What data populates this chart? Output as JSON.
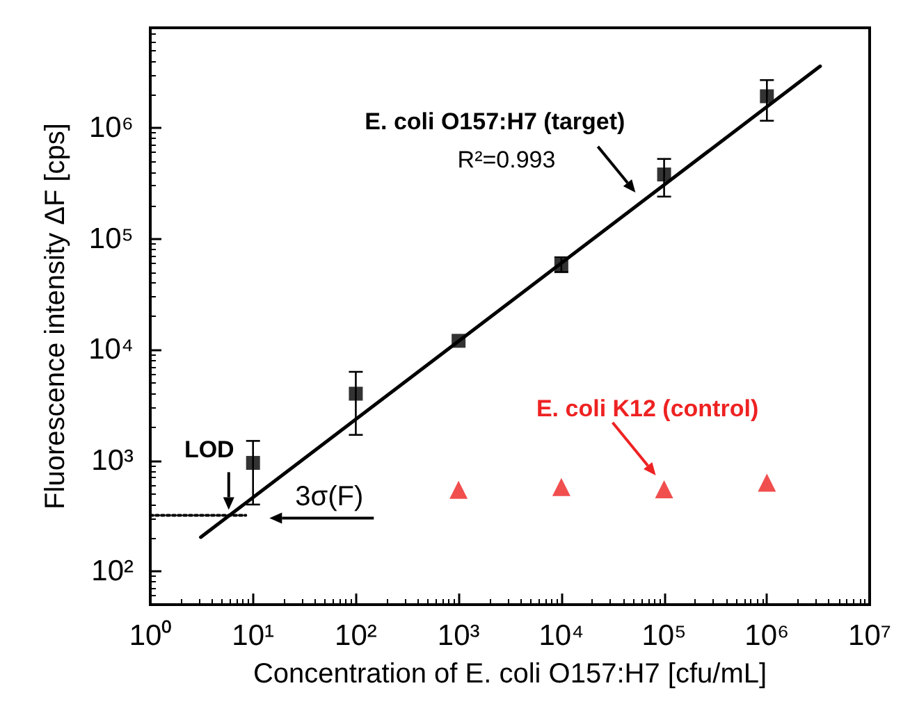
{
  "chart_data": {
    "type": "scatter",
    "xlabel": "Concentration of E. coli O157:H7 [cfu/mL]",
    "ylabel": "Fluorescence intensity ΔF [cps]",
    "log": "xy",
    "grid": false,
    "xlim": [
      1,
      10000000
    ],
    "ylim": [
      50,
      8000000
    ],
    "xticks": [
      {
        "value": 1,
        "label": "10⁰"
      },
      {
        "value": 10,
        "label": "10¹"
      },
      {
        "value": 100,
        "label": "10²"
      },
      {
        "value": 1000,
        "label": "10³"
      },
      {
        "value": 10000,
        "label": "10⁴"
      },
      {
        "value": 100000,
        "label": "10⁵"
      },
      {
        "value": 1000000,
        "label": "10⁶"
      },
      {
        "value": 10000000,
        "label": "10⁷"
      }
    ],
    "yticks": [
      {
        "value": 100,
        "label": "10²"
      },
      {
        "value": 1000,
        "label": "10³"
      },
      {
        "value": 10000,
        "label": "10⁴"
      },
      {
        "value": 100000,
        "label": "10⁵"
      },
      {
        "value": 1000000,
        "label": "10⁶"
      }
    ],
    "series": [
      {
        "marker": "square",
        "color": "#000000",
        "x": [
          10,
          100,
          1000,
          10000,
          100000,
          1000000
        ],
        "values": [
          950,
          4000,
          12000,
          58000,
          380000,
          1930000
        ],
        "errors": [
          [
            400,
            1500
          ],
          [
            1700,
            6300
          ],
          null,
          [
            50000,
            68000
          ],
          [
            240000,
            525000
          ],
          [
            1160000,
            2700000
          ]
        ]
      },
      {
        "marker": "triangle",
        "color": "#ee2222",
        "x": [
          1000,
          10000,
          100000,
          1000000
        ],
        "values": [
          543,
          575,
          550,
          630
        ]
      },
      {
        "type": "line",
        "marker": "none",
        "line_style": "solid",
        "color": "#000000",
        "x": [
          3.1,
          3300000
        ],
        "values": [
          203,
          3600000
        ]
      },
      {
        "type": "line",
        "marker": "none",
        "line_style": "dotted",
        "color": "#000000",
        "x": [
          1,
          8.5
        ],
        "values": [
          320,
          320
        ]
      }
    ],
    "annotations": [
      {
        "text": "E. coli O157:H7 (target)",
        "x": 56000,
        "y": 240000
      },
      "R²=0.993",
      {
        "text": "E. coli K12 (control)",
        "x": 100000,
        "y": 550
      },
      {
        "text": "LOD",
        "x": 5.8,
        "y": 320
      },
      {
        "text": "3σ(F)",
        "x": 8.5,
        "y": 320
      }
    ]
  }
}
